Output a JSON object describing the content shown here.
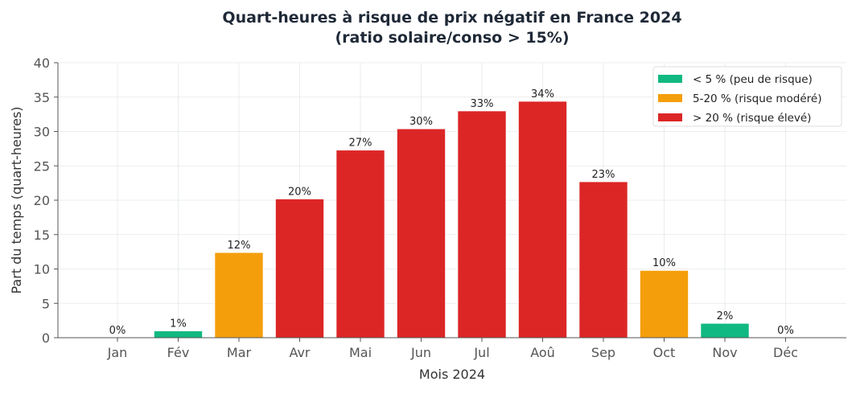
{
  "chart_data": {
    "type": "bar",
    "title": "Quart-heures à risque de prix négatif en France 2024",
    "subtitle": "(ratio solaire/conso > 15%)",
    "xlabel": "Mois 2024",
    "ylabel": "Part du temps (quart-heures)",
    "ylim": [
      0,
      40
    ],
    "yticks": [
      0,
      5,
      10,
      15,
      20,
      25,
      30,
      35,
      40
    ],
    "grid": true,
    "legend_position": "top-right",
    "categories": [
      "Jan",
      "Fév",
      "Mar",
      "Avr",
      "Mai",
      "Jun",
      "Jul",
      "Aoû",
      "Sep",
      "Oct",
      "Nov",
      "Déc"
    ],
    "values": [
      0,
      1.0,
      12.4,
      20.2,
      27.3,
      30.4,
      33.0,
      34.4,
      22.7,
      9.8,
      2.1,
      0
    ],
    "data_labels": [
      "0%",
      "1%",
      "12%",
      "20%",
      "27%",
      "30%",
      "33%",
      "34%",
      "23%",
      "10%",
      "2%",
      "0%"
    ],
    "bar_risk": [
      "low",
      "low",
      "moderate",
      "high",
      "high",
      "high",
      "high",
      "high",
      "high",
      "moderate",
      "low",
      "low"
    ],
    "legend": [
      {
        "key": "low",
        "label": "< 5 % (peu de risque)",
        "color": "#10b981"
      },
      {
        "key": "moderate",
        "label": "5-20 % (risque modéré)",
        "color": "#f59e0b"
      },
      {
        "key": "high",
        "label": "> 20 % (risque élevé)",
        "color": "#dc2626"
      }
    ]
  }
}
